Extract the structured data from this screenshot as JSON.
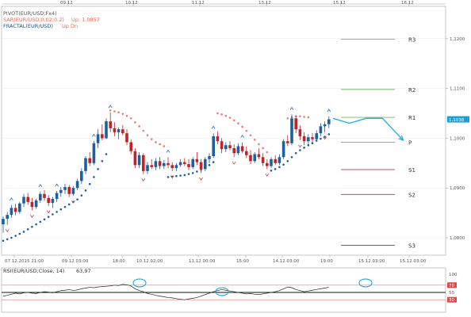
{
  "chart_data": [
    {
      "type": "candlestick",
      "legend": [
        {
          "label": "PIVOT(EUR/USD;Fx4)",
          "color": "#555555"
        },
        {
          "label": "SAR(EUR/USD;0.02;0.2)",
          "value": "Up: 1.0857",
          "color": "#e8685a"
        },
        {
          "label": "FRACTAL(EUR/USD)",
          "value": "Up  Dn",
          "color": "#1f4e79"
        }
      ],
      "top_dates": [
        "09.12",
        "10.12",
        "11.12",
        "13.12",
        "15.12",
        "16.12"
      ],
      "bottom_times": [
        "07.12.2015 21:00",
        "09.12 03:00",
        "18:00",
        "10.12 02:00",
        "11.12 00:00",
        "15:00",
        "14.12 03:00",
        "19:00",
        "15.12 03:00",
        "15.12 03:00"
      ],
      "y_ticks": [
        1.08,
        1.09,
        1.1,
        1.11,
        1.12
      ],
      "y_tick_labels": [
        "1,0800",
        "1,0900",
        "1,1000",
        "1,1100",
        "1,1200"
      ],
      "ylim": [
        1.0765,
        1.1265
      ],
      "current_price": {
        "value": 1.1038,
        "label": "1,1038"
      },
      "pivot_levels": [
        {
          "name": "R3",
          "value": 1.1199,
          "color": "#74b661"
        },
        {
          "name": "R2",
          "value": 1.1098,
          "color": "#74b661"
        },
        {
          "name": "R1",
          "value": 1.1042,
          "color": "#74b661"
        },
        {
          "name": "P",
          "value": 1.0992,
          "color": "#74b661"
        },
        {
          "name": "S1",
          "value": 1.0937,
          "color": "#d0322b"
        },
        {
          "name": "S2",
          "value": 1.0887,
          "color": "#b35a44"
        },
        {
          "name": "S3",
          "value": 1.0785,
          "color": "#c4202a"
        }
      ],
      "candles": [
        [
          1.0827,
          1.0843,
          1.081,
          1.0838
        ],
        [
          1.0838,
          1.0852,
          1.0826,
          1.0846
        ],
        [
          1.0846,
          1.0866,
          1.084,
          1.086
        ],
        [
          1.086,
          1.0868,
          1.0845,
          1.0852
        ],
        [
          1.0852,
          1.0872,
          1.0848,
          1.0869
        ],
        [
          1.0869,
          1.0888,
          1.0862,
          1.0882
        ],
        [
          1.0882,
          1.089,
          1.0866,
          1.0872
        ],
        [
          1.0872,
          1.088,
          1.0855,
          1.0862
        ],
        [
          1.0862,
          1.0878,
          1.0858,
          1.0875
        ],
        [
          1.0875,
          1.0893,
          1.087,
          1.0888
        ],
        [
          1.0888,
          1.0896,
          1.0874,
          1.088
        ],
        [
          1.088,
          1.0886,
          1.0864,
          1.087
        ],
        [
          1.087,
          1.0882,
          1.086,
          1.0878
        ],
        [
          1.0878,
          1.0894,
          1.0872,
          1.089
        ],
        [
          1.089,
          1.0902,
          1.0882,
          1.0896
        ],
        [
          1.0896,
          1.0908,
          1.0888,
          1.0902
        ],
        [
          1.0902,
          1.0906,
          1.0882,
          1.0888
        ],
        [
          1.0888,
          1.0904,
          1.0884,
          1.09
        ],
        [
          1.09,
          1.0918,
          1.0896,
          1.0914
        ],
        [
          1.0914,
          1.094,
          1.0908,
          1.0934
        ],
        [
          1.0934,
          1.0964,
          1.0928,
          1.096
        ],
        [
          1.096,
          1.0972,
          1.0944,
          1.095
        ],
        [
          1.095,
          1.0994,
          1.0946,
          1.099
        ],
        [
          1.099,
          1.1018,
          1.098,
          1.1008
        ],
        [
          1.1008,
          1.1028,
          1.0996,
          1.1
        ],
        [
          1.1,
          1.104,
          1.0998,
          1.1034
        ],
        [
          1.1034,
          1.1052,
          1.1012,
          1.102
        ],
        [
          1.102,
          1.1032,
          1.1004,
          1.1012
        ],
        [
          1.1012,
          1.1022,
          1.0998,
          1.1018
        ],
        [
          1.1018,
          1.1026,
          1.1006,
          1.101
        ],
        [
          1.101,
          1.1018,
          1.0986,
          1.0992
        ],
        [
          1.0992,
          1.0998,
          1.0968,
          1.0974
        ],
        [
          1.0974,
          1.098,
          1.094,
          1.0946
        ],
        [
          1.0946,
          1.0972,
          1.094,
          1.0966
        ],
        [
          1.0966,
          1.097,
          1.0928,
          1.0934
        ],
        [
          1.0934,
          1.0952,
          1.0928,
          1.0946
        ],
        [
          1.0946,
          1.0958,
          1.0938,
          1.0942
        ],
        [
          1.0942,
          1.096,
          1.0936,
          1.0954
        ],
        [
          1.0954,
          1.0962,
          1.0938,
          1.0944
        ],
        [
          1.0944,
          1.0956,
          1.0938,
          1.095
        ],
        [
          1.095,
          1.0962,
          1.094,
          1.0946
        ],
        [
          1.0946,
          1.0952,
          1.0934,
          1.094
        ],
        [
          1.094,
          1.095,
          1.0934,
          1.0946
        ],
        [
          1.0946,
          1.0958,
          1.0942,
          1.0952
        ],
        [
          1.0952,
          1.096,
          1.0944,
          1.0948
        ],
        [
          1.0948,
          1.0958,
          1.0936,
          1.0942
        ],
        [
          1.0942,
          1.0962,
          1.0938,
          1.0958
        ],
        [
          1.0958,
          1.0972,
          1.0946,
          1.0952
        ],
        [
          1.0952,
          1.0958,
          1.093,
          1.0938
        ],
        [
          1.0938,
          1.0962,
          1.0934,
          1.0958
        ],
        [
          1.0958,
          1.097,
          1.095,
          1.0964
        ],
        [
          1.0964,
          1.101,
          1.096,
          1.1004
        ],
        [
          1.1004,
          1.1014,
          1.0988,
          1.0994
        ],
        [
          1.0994,
          1.1,
          1.097,
          1.0978
        ],
        [
          1.0978,
          1.0992,
          1.0972,
          1.0986
        ],
        [
          1.0986,
          1.0994,
          1.0976,
          1.098
        ],
        [
          1.098,
          1.0988,
          1.0962,
          1.097
        ],
        [
          1.097,
          1.099,
          1.0966,
          1.0984
        ],
        [
          1.0984,
          1.0992,
          1.097,
          1.0974
        ],
        [
          1.0974,
          1.0984,
          1.096,
          1.0966
        ],
        [
          1.0966,
          1.0976,
          1.0948,
          1.0954
        ],
        [
          1.0954,
          1.0972,
          1.095,
          1.0968
        ],
        [
          1.0968,
          1.098,
          1.0958,
          1.0962
        ],
        [
          1.0962,
          1.097,
          1.0944,
          1.095
        ],
        [
          1.095,
          1.0958,
          1.0938,
          1.0944
        ],
        [
          1.0944,
          1.0962,
          1.094,
          1.0958
        ],
        [
          1.0958,
          1.0966,
          1.0946,
          1.095
        ],
        [
          1.095,
          1.0968,
          1.0946,
          1.0962
        ],
        [
          1.0962,
          1.0998,
          1.0958,
          1.0994
        ],
        [
          1.0994,
          1.1006,
          1.0984,
          1.099
        ],
        [
          1.099,
          1.1048,
          1.0986,
          1.104
        ],
        [
          1.104,
          1.1046,
          1.101,
          1.1018
        ],
        [
          1.1018,
          1.1026,
          1.0996,
          1.1004
        ],
        [
          1.1004,
          1.1012,
          1.0986,
          1.0994
        ],
        [
          1.0994,
          1.1008,
          1.0988,
          1.1002
        ],
        [
          1.1002,
          1.101,
          1.0992,
          1.0998
        ],
        [
          1.0998,
          1.1016,
          1.0994,
          1.101
        ],
        [
          1.101,
          1.103,
          1.1004,
          1.1024
        ],
        [
          1.1024,
          1.1034,
          1.1012,
          1.1028
        ],
        [
          1.1028,
          1.1044,
          1.102,
          1.1038
        ]
      ],
      "sar_up": [
        [
          0,
          1.0794
        ],
        [
          1,
          1.0797
        ],
        [
          2,
          1.08
        ],
        [
          3,
          1.0804
        ],
        [
          4,
          1.0808
        ],
        [
          5,
          1.0812
        ],
        [
          6,
          1.0817
        ],
        [
          7,
          1.0822
        ],
        [
          8,
          1.0827
        ],
        [
          9,
          1.0832
        ],
        [
          10,
          1.0837
        ],
        [
          11,
          1.0842
        ],
        [
          12,
          1.0847
        ],
        [
          13,
          1.0852
        ],
        [
          14,
          1.0857
        ],
        [
          15,
          1.0862
        ],
        [
          16,
          1.0867
        ],
        [
          17,
          1.0872
        ],
        [
          18,
          1.0877
        ],
        [
          19,
          1.0885
        ],
        [
          20,
          1.0895
        ],
        [
          21,
          1.0908
        ],
        [
          22,
          1.0922
        ],
        [
          23,
          1.0938
        ],
        [
          24,
          1.0954
        ],
        [
          25,
          1.0968
        ],
        [
          40,
          1.0922
        ],
        [
          41,
          1.0923
        ],
        [
          42,
          1.0924
        ],
        [
          43,
          1.0925
        ],
        [
          44,
          1.0926
        ],
        [
          45,
          1.0928
        ],
        [
          46,
          1.093
        ],
        [
          47,
          1.0933
        ],
        [
          48,
          1.0937
        ],
        [
          49,
          1.0941
        ],
        [
          50,
          1.0946
        ],
        [
          51,
          1.0952
        ],
        [
          65,
          1.0935
        ],
        [
          66,
          1.0938
        ],
        [
          67,
          1.0942
        ],
        [
          68,
          1.0947
        ],
        [
          69,
          1.0954
        ],
        [
          70,
          1.0962
        ],
        [
          71,
          1.097
        ],
        [
          72,
          1.0976
        ],
        [
          73,
          1.0981
        ],
        [
          74,
          1.0986
        ],
        [
          75,
          1.099
        ],
        [
          76,
          1.0995
        ],
        [
          77,
          1.0999
        ],
        [
          78,
          1.1003
        ],
        [
          79,
          1.1008
        ]
      ],
      "sar_down": [
        [
          26,
          1.1056
        ],
        [
          27,
          1.1054
        ],
        [
          28,
          1.1052
        ],
        [
          29,
          1.1049
        ],
        [
          30,
          1.1045
        ],
        [
          31,
          1.104
        ],
        [
          32,
          1.1032
        ],
        [
          33,
          1.1024
        ],
        [
          34,
          1.1015
        ],
        [
          35,
          1.1006
        ],
        [
          36,
          1.0998
        ],
        [
          37,
          1.0992
        ],
        [
          38,
          1.0988
        ],
        [
          39,
          1.0984
        ],
        [
          52,
          1.105
        ],
        [
          53,
          1.1048
        ],
        [
          54,
          1.1045
        ],
        [
          55,
          1.1041
        ],
        [
          56,
          1.1036
        ],
        [
          57,
          1.103
        ],
        [
          58,
          1.1023
        ],
        [
          59,
          1.1015
        ],
        [
          60,
          1.1006
        ],
        [
          61,
          1.0997
        ],
        [
          62,
          1.0988
        ],
        [
          63,
          1.098
        ],
        [
          64,
          1.0972
        ],
        [
          69,
          1.104
        ],
        [
          70,
          1.1042
        ],
        [
          71,
          1.1044
        ],
        [
          72,
          1.1044
        ],
        [
          73,
          1.1043
        ],
        [
          74,
          1.1042
        ]
      ],
      "fractals_up": [
        [
          2,
          1.0872
        ],
        [
          9,
          1.0899
        ],
        [
          13,
          1.09
        ],
        [
          22,
          1.1
        ],
        [
          26,
          1.1058
        ],
        [
          40,
          1.0968
        ],
        [
          51,
          1.1016
        ],
        [
          58,
          1.0998
        ],
        [
          70,
          1.1054
        ],
        [
          79,
          1.105
        ]
      ],
      "fractals_down": [
        [
          1,
          1.082
        ],
        [
          7,
          1.0849
        ],
        [
          11,
          1.0858
        ],
        [
          17,
          1.0878
        ],
        [
          34,
          1.0922
        ],
        [
          41,
          1.0928
        ],
        [
          48,
          1.0924
        ],
        [
          56,
          1.0956
        ],
        [
          64,
          1.0932
        ],
        [
          72,
          1.099
        ],
        [
          78,
          1.1006
        ]
      ],
      "projection": {
        "x": [
          80,
          84,
          88,
          92,
          97
        ],
        "y": [
          1.104,
          1.103,
          1.104,
          1.104,
          1.0996
        ]
      }
    },
    {
      "type": "line",
      "label": "RSI(EUR/USD;Close, 14)",
      "value_label": "63,97",
      "ylim": [
        0,
        100
      ],
      "y_ticks": [
        30,
        50,
        70,
        100
      ],
      "y_tick_labels": [
        "30",
        "50",
        "70",
        "100"
      ],
      "levels": [
        {
          "value": 70,
          "color": "#e37a7a"
        },
        {
          "value": 50,
          "color": "#111111"
        },
        {
          "value": 30,
          "color": "#e37a7a"
        }
      ],
      "values": [
        40,
        42,
        45,
        48,
        46,
        49,
        50,
        48,
        47,
        50,
        52,
        51,
        49,
        52,
        55,
        56,
        58,
        55,
        57,
        60,
        62,
        64,
        63,
        65,
        66,
        67,
        68,
        70,
        69,
        72,
        71,
        68,
        60,
        55,
        52,
        47,
        45,
        42,
        40,
        38,
        36,
        35,
        33,
        31,
        30,
        32,
        34,
        36,
        40,
        44,
        48,
        52,
        55,
        58,
        56,
        54,
        52,
        50,
        48,
        46,
        47,
        45,
        44,
        46,
        48,
        50,
        52,
        55,
        60,
        65,
        63,
        58,
        55,
        52,
        54,
        56,
        58,
        60,
        62,
        64
      ]
    }
  ]
}
